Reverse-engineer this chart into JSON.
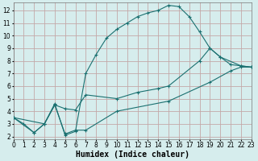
{
  "xlabel": "Humidex (Indice chaleur)",
  "bg_color": "#d6eded",
  "grid_color": "#c4a8a8",
  "line_color": "#1a7070",
  "line1_x": [
    0,
    1,
    2,
    3,
    4,
    5,
    6,
    7,
    8,
    9,
    10,
    11,
    12,
    13,
    14,
    15,
    16,
    17,
    18,
    19,
    20,
    21,
    22,
    23
  ],
  "line1_y": [
    3.5,
    3.0,
    2.3,
    3.0,
    4.6,
    2.1,
    2.4,
    7.0,
    8.5,
    9.8,
    10.5,
    11.0,
    11.5,
    11.8,
    12.0,
    12.4,
    12.3,
    11.5,
    10.3,
    9.0,
    8.3,
    7.7,
    7.6,
    7.5
  ],
  "line2_x": [
    0,
    3,
    4,
    5,
    6,
    7,
    10,
    12,
    14,
    15,
    18,
    19,
    20,
    22,
    23
  ],
  "line2_y": [
    3.5,
    3.0,
    4.5,
    4.2,
    4.1,
    5.3,
    5.0,
    5.5,
    5.8,
    6.0,
    8.0,
    9.0,
    8.3,
    7.6,
    7.5
  ],
  "line3_x": [
    0,
    2,
    3,
    4,
    5,
    6,
    7,
    10,
    15,
    19,
    21,
    22,
    23
  ],
  "line3_y": [
    3.5,
    2.3,
    3.0,
    4.5,
    2.2,
    2.5,
    2.5,
    4.0,
    4.8,
    6.3,
    7.2,
    7.5,
    7.5
  ],
  "xlim": [
    0,
    23
  ],
  "ylim": [
    1.8,
    12.6
  ],
  "xticks": [
    0,
    1,
    2,
    3,
    4,
    5,
    6,
    7,
    8,
    9,
    10,
    11,
    12,
    13,
    14,
    15,
    16,
    17,
    18,
    19,
    20,
    21,
    22,
    23
  ],
  "yticks": [
    2,
    3,
    4,
    5,
    6,
    7,
    8,
    9,
    10,
    11,
    12
  ],
  "tick_fontsize": 5.5,
  "xlabel_fontsize": 7.0
}
